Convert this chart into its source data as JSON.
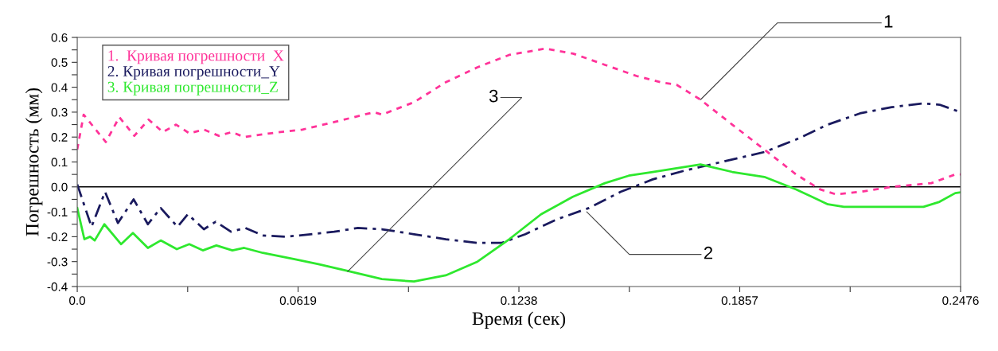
{
  "chart_data": {
    "type": "line",
    "xlabel": "Время (сек)",
    "ylabel": "Погрешность (мм)",
    "xlim": [
      0,
      0.2476
    ],
    "xticks": [
      {
        "value": 0,
        "label": "0.0"
      },
      {
        "value": 0.03095,
        "label": null
      },
      0.0619,
      {
        "value": 0.09285,
        "label": null
      },
      0.1238,
      {
        "value": 0.15475,
        "label": null
      },
      0.1857,
      {
        "value": 0.21665,
        "label": null
      },
      0.2476
    ],
    "ylim": [
      -0.4,
      0.6
    ],
    "yticks": [
      {
        "value": -0.4,
        "label": "-0.4"
      },
      {
        "value": -0.35,
        "label": null
      },
      {
        "value": -0.3,
        "label": "-0.3"
      },
      {
        "value": -0.25,
        "label": null
      },
      {
        "value": -0.2,
        "label": "-0.2"
      },
      {
        "value": -0.15,
        "label": null
      },
      {
        "value": -0.1,
        "label": "-0.1"
      },
      {
        "value": -0.05,
        "label": null
      },
      {
        "value": 0,
        "label": "0.0"
      },
      {
        "value": 0.05,
        "label": null
      },
      0.1,
      {
        "value": 0.15,
        "label": null
      },
      0.2,
      {
        "value": 0.25,
        "label": null
      },
      0.3,
      {
        "value": 0.35,
        "label": null
      },
      0.4,
      {
        "value": 0.45,
        "label": null
      },
      0.5,
      {
        "value": 0.55,
        "label": null
      },
      0.6
    ],
    "grid": false,
    "legend": "top left",
    "marker": "none",
    "ref_lines": [
      {
        "axis": "y",
        "value": 0,
        "color": "#000000",
        "line_style": "solid"
      }
    ],
    "annotations": [
      {
        "text": "1",
        "x": 0.1747,
        "y": 0.35
      },
      {
        "text": "2",
        "x": 0.1428,
        "y": -0.1
      },
      {
        "text": "3",
        "x": 0.0758,
        "y": -0.34
      }
    ],
    "series": [
      {
        "name": "1.  Кривая погрешности  X",
        "color": "#ff3399",
        "line_style": "dotted",
        "x": [
          0,
          0.0018,
          0.008,
          0.0118,
          0.016,
          0.02,
          0.024,
          0.0277,
          0.0314,
          0.0355,
          0.0397,
          0.0433,
          0.0468,
          0.054,
          0.0631,
          0.072,
          0.0832,
          0.0854,
          0.0944,
          0.1033,
          0.1122,
          0.1211,
          0.1312,
          0.139,
          0.1479,
          0.1568,
          0.1635,
          0.168,
          0.1747,
          0.1836,
          0.1926,
          0.2015,
          0.2082,
          0.2127,
          0.2194,
          0.2283,
          0.2394,
          0.2461,
          0.2476
        ],
        "values": [
          0.15,
          0.29,
          0.18,
          0.28,
          0.205,
          0.27,
          0.22,
          0.25,
          0.215,
          0.23,
          0.205,
          0.22,
          0.2,
          0.215,
          0.23,
          0.26,
          0.3,
          0.29,
          0.34,
          0.42,
          0.48,
          0.53,
          0.555,
          0.535,
          0.49,
          0.445,
          0.42,
          0.41,
          0.35,
          0.25,
          0.15,
          0.05,
          -0.01,
          -0.03,
          -0.02,
          0.0,
          0.015,
          0.05,
          0.05
        ]
      },
      {
        "name": "2. Кривая погрешности_Y",
        "color": "#1a1a5e",
        "line_style": "dashdot",
        "x": [
          0,
          0.004,
          0.0078,
          0.0114,
          0.0158,
          0.0198,
          0.0234,
          0.0281,
          0.031,
          0.0355,
          0.0388,
          0.0431,
          0.0471,
          0.052,
          0.0587,
          0.0654,
          0.072,
          0.0787,
          0.0854,
          0.0944,
          0.1033,
          0.1122,
          0.1189,
          0.1256,
          0.1345,
          0.1434,
          0.1523,
          0.1613,
          0.1702,
          0.1747,
          0.1836,
          0.1926,
          0.2015,
          0.2104,
          0.2194,
          0.2283,
          0.2372,
          0.2417,
          0.2476
        ],
        "values": [
          0.01,
          -0.16,
          -0.02,
          -0.145,
          -0.05,
          -0.15,
          -0.085,
          -0.16,
          -0.11,
          -0.17,
          -0.14,
          -0.18,
          -0.165,
          -0.195,
          -0.2,
          -0.19,
          -0.18,
          -0.165,
          -0.17,
          -0.19,
          -0.21,
          -0.225,
          -0.225,
          -0.19,
          -0.13,
          -0.085,
          -0.02,
          0.03,
          0.065,
          0.08,
          0.11,
          0.14,
          0.19,
          0.25,
          0.295,
          0.32,
          0.335,
          0.33,
          0.3
        ]
      },
      {
        "name": "3. Кривая погрешности_Z",
        "color": "#2ee82e",
        "line_style": "solid",
        "x": [
          0,
          0.002,
          0.0036,
          0.0049,
          0.0076,
          0.0123,
          0.0156,
          0.0198,
          0.0234,
          0.0279,
          0.0314,
          0.0352,
          0.039,
          0.0435,
          0.0468,
          0.052,
          0.0609,
          0.0676,
          0.0765,
          0.0854,
          0.0944,
          0.1033,
          0.1122,
          0.1211,
          0.13,
          0.1389,
          0.1479,
          0.1546,
          0.1613,
          0.1747,
          0.1836,
          0.1926,
          0.2015,
          0.2104,
          0.2149,
          0.2238,
          0.2372,
          0.2417,
          0.2461,
          0.2476
        ],
        "values": [
          -0.085,
          -0.21,
          -0.2,
          -0.215,
          -0.15,
          -0.23,
          -0.185,
          -0.245,
          -0.215,
          -0.25,
          -0.23,
          -0.255,
          -0.235,
          -0.255,
          -0.245,
          -0.265,
          -0.29,
          -0.31,
          -0.34,
          -0.37,
          -0.38,
          -0.355,
          -0.3,
          -0.21,
          -0.11,
          -0.04,
          0.015,
          0.045,
          0.06,
          0.09,
          0.06,
          0.04,
          -0.01,
          -0.07,
          -0.08,
          -0.08,
          -0.08,
          -0.06,
          -0.025,
          -0.022
        ]
      }
    ]
  }
}
